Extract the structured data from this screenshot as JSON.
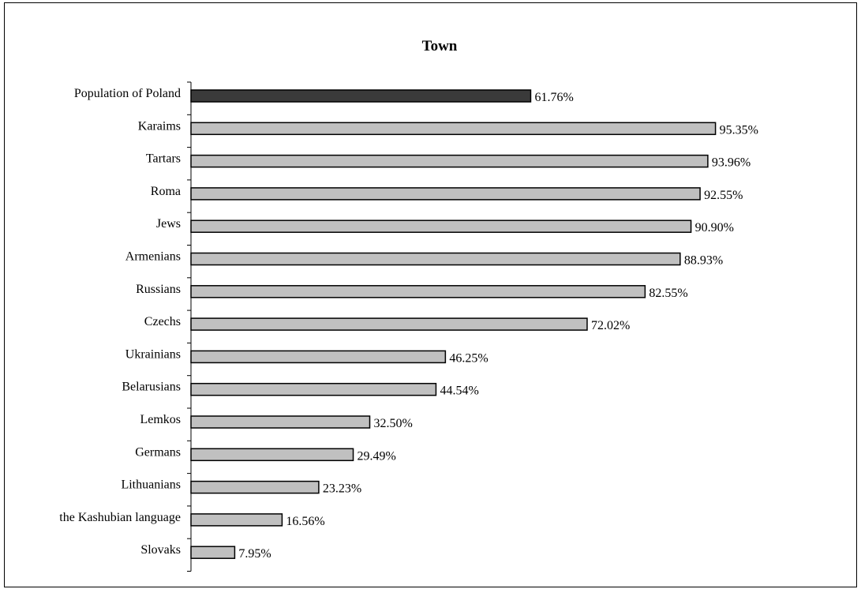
{
  "chart_data": {
    "type": "bar",
    "orientation": "horizontal",
    "title": "Town",
    "xlabel": "",
    "ylabel": "",
    "xlim": [
      0,
      100
    ],
    "grid": false,
    "legend": "none",
    "value_suffix": "%",
    "categories": [
      "Population of Poland",
      "Karaims",
      "Tartars",
      "Roma",
      "Jews",
      "Armenians",
      "Russians",
      "Czechs",
      "Ukrainians",
      "Belarusians",
      "Lemkos",
      "Germans",
      "Lithuanians",
      "the Kashubian language",
      "Slovaks"
    ],
    "values": [
      61.76,
      95.35,
      93.96,
      92.55,
      90.9,
      88.93,
      82.55,
      72.02,
      46.25,
      44.54,
      32.5,
      29.49,
      23.23,
      16.56,
      7.95
    ],
    "value_labels": [
      "61.76%",
      "95.35%",
      "93.96%",
      "92.55%",
      "90.90%",
      "88.93%",
      "82.55%",
      "72.02%",
      "46.25%",
      "44.54%",
      "32.50%",
      "29.49%",
      "23.23%",
      "16.56%",
      "7.95%"
    ],
    "colors": {
      "highlight_bar": "#3a3a3a",
      "bar": "#c0c0c0",
      "bar_stroke": "#000000",
      "axis": "#000000",
      "text": "#000000"
    }
  }
}
